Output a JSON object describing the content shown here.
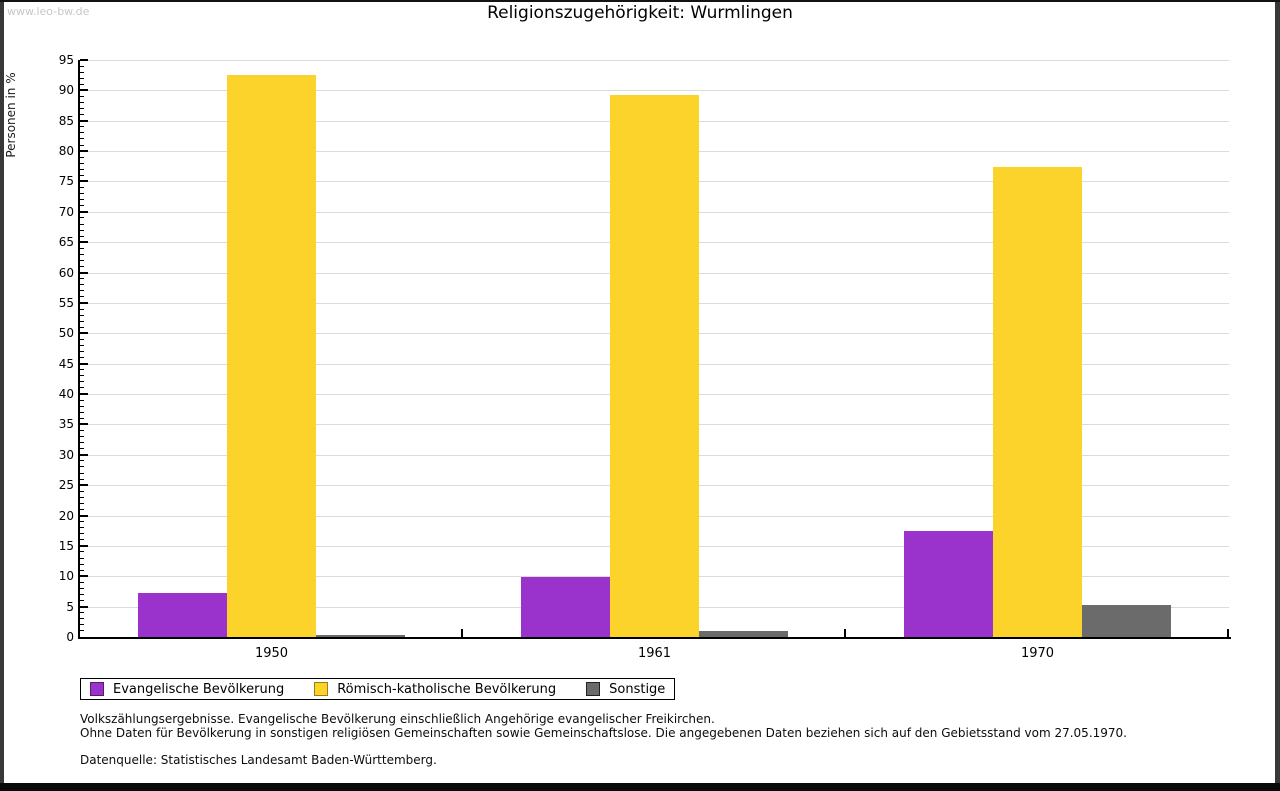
{
  "watermark": "www.leo-bw.de",
  "chart_data": {
    "type": "bar",
    "title": "Religionszugehörigkeit: Wurmlingen",
    "ylabel": "Personen in %",
    "xlabel": "",
    "ylim": [
      0,
      95
    ],
    "ytick_step": 5,
    "ytick_minor_step": 1,
    "yticks": [
      0,
      5,
      10,
      15,
      20,
      25,
      30,
      35,
      40,
      45,
      50,
      55,
      60,
      65,
      70,
      75,
      80,
      85,
      90,
      95
    ],
    "grid": "horizontal",
    "legend_position": "bottom-left",
    "categories": [
      "1950",
      "1961",
      "1970"
    ],
    "series": [
      {
        "name": "Evangelische Bevölkerung",
        "slug": "evangelische-bevoelkerung",
        "color": "#9933CC",
        "border": "#541B73",
        "values": [
          7.2,
          9.8,
          17.4
        ]
      },
      {
        "name": "Römisch-katholische Bevölkerung",
        "slug": "roemisch-katholische-bevoelkerung",
        "color": "#FCD32B",
        "border": "#9C7E12",
        "values": [
          92.5,
          89.2,
          77.4
        ]
      },
      {
        "name": "Sonstige",
        "slug": "sonstige",
        "color": "#6B6B6B",
        "border": "#222222",
        "values": [
          0.3,
          1.0,
          5.2
        ]
      }
    ]
  },
  "footnotes": {
    "line1": "Volkszählungsergebnisse. Evangelische Bevölkerung einschließlich Angehörige evangelischer Freikirchen.",
    "line2": "Ohne Daten für Bevölkerung in sonstigen religiösen Gemeinschaften sowie Gemeinschaftslose. Die angegebenen Daten beziehen sich auf den Gebietsstand vom 27.05.1970.",
    "source": "Datenquelle: Statistisches Landesamt Baden-Württemberg."
  }
}
